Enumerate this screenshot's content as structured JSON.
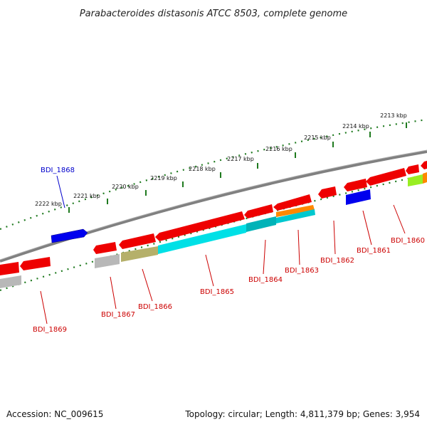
{
  "title": "Parabacteroides distasonis ATCC 8503, complete genome",
  "footer": {
    "accession": "Accession: NC_009615",
    "summary": "Topology: circular; Length: 4,811,379 bp; Genes: 3,954"
  },
  "colors": {
    "backbone": "#8a8a8a",
    "tick_dot": "#1f7a1f",
    "label_forward": "#0000cc",
    "label_reverse": "#cc0000",
    "red": "#ee0000",
    "blue": "#0000ee",
    "cyan": "#00e0e6",
    "teal": "#00b3b8",
    "olive": "#b5b06a",
    "gray": "#b8b8b8",
    "orange": "#ff8800",
    "lime": "#99ee22"
  },
  "scale_ticks": [
    {
      "label": "2213 kbp"
    },
    {
      "label": "2214 kbp"
    },
    {
      "label": "2215 kbp"
    },
    {
      "label": "2216 kbp"
    },
    {
      "label": "2217 kbp"
    },
    {
      "label": "2218 kbp"
    },
    {
      "label": "2219 kbp"
    },
    {
      "label": "2220 kbp"
    },
    {
      "label": "2221 kbp"
    },
    {
      "label": "2222 kbp"
    }
  ],
  "gene_labels": [
    {
      "id": "BDI_1868",
      "strand": "forward"
    },
    {
      "id": "BDI_1860",
      "strand": "reverse"
    },
    {
      "id": "BDI_1861",
      "strand": "reverse"
    },
    {
      "id": "BDI_1862",
      "strand": "reverse"
    },
    {
      "id": "BDI_1863",
      "strand": "reverse"
    },
    {
      "id": "BDI_1864",
      "strand": "reverse"
    },
    {
      "id": "BDI_1865",
      "strand": "reverse"
    },
    {
      "id": "BDI_1866",
      "strand": "reverse"
    },
    {
      "id": "BDI_1867",
      "strand": "reverse"
    },
    {
      "id": "BDI_1869",
      "strand": "reverse"
    }
  ]
}
